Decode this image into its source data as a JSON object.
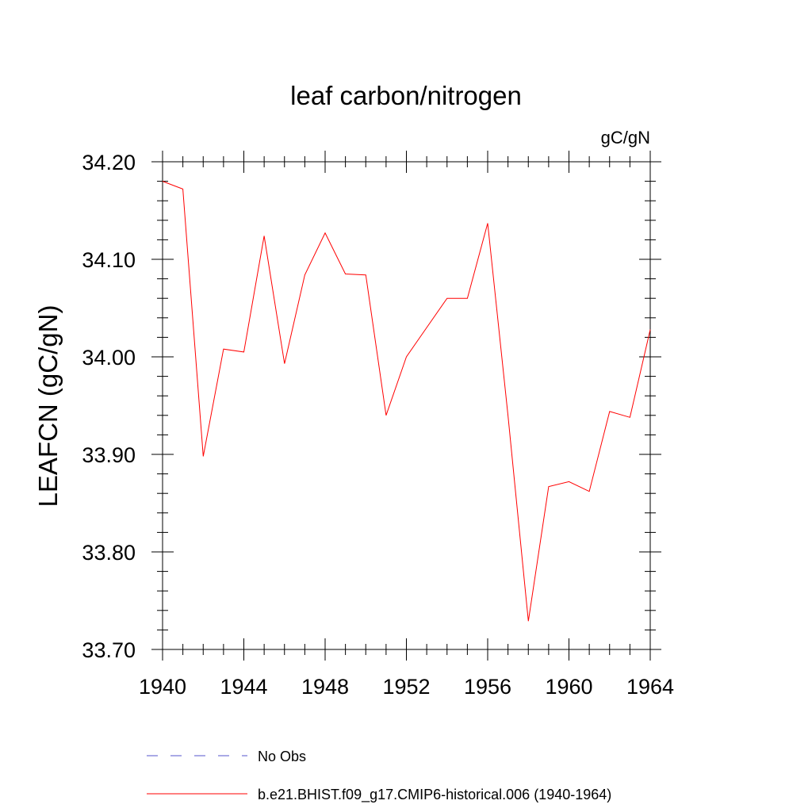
{
  "chart_data": {
    "type": "line",
    "title": "leaf carbon/nitrogen",
    "units_label": "gC/gN",
    "ylabel": "LEAFCN  (gC/gN)",
    "xlabel": "",
    "xlim": [
      1940,
      1964
    ],
    "ylim": [
      33.7,
      34.2
    ],
    "x_ticks": [
      1940,
      1944,
      1948,
      1952,
      1956,
      1960,
      1964
    ],
    "y_ticks": [
      "33.70",
      "33.80",
      "33.90",
      "34.00",
      "34.10",
      "34.20"
    ],
    "y_tick_values": [
      33.7,
      33.8,
      33.9,
      34.0,
      34.1,
      34.2
    ],
    "grid": false,
    "legend_position": "bottom",
    "series": [
      {
        "name": "b.e21.BHIST.f09_g17.CMIP6-historical.006 (1940-1964)",
        "color": "#ff0000",
        "style": "solid",
        "x": [
          1940,
          1941,
          1942,
          1943,
          1944,
          1945,
          1946,
          1947,
          1948,
          1949,
          1950,
          1951,
          1952,
          1953,
          1954,
          1955,
          1956,
          1957,
          1958,
          1959,
          1960,
          1961,
          1962,
          1963,
          1964
        ],
        "y": [
          34.18,
          34.172,
          33.898,
          34.008,
          34.005,
          34.124,
          33.993,
          34.084,
          34.127,
          34.085,
          34.084,
          33.94,
          34.0,
          34.03,
          34.06,
          34.06,
          34.137,
          33.94,
          33.729,
          33.867,
          33.872,
          33.862,
          33.944,
          33.938,
          34.028
        ]
      }
    ],
    "legend": [
      {
        "label": "No Obs",
        "color": "#5555cc",
        "style": "dashed"
      },
      {
        "label": "b.e21.BHIST.f09_g17.CMIP6-historical.006 (1940-1964)",
        "color": "#ff0000",
        "style": "solid"
      }
    ]
  }
}
